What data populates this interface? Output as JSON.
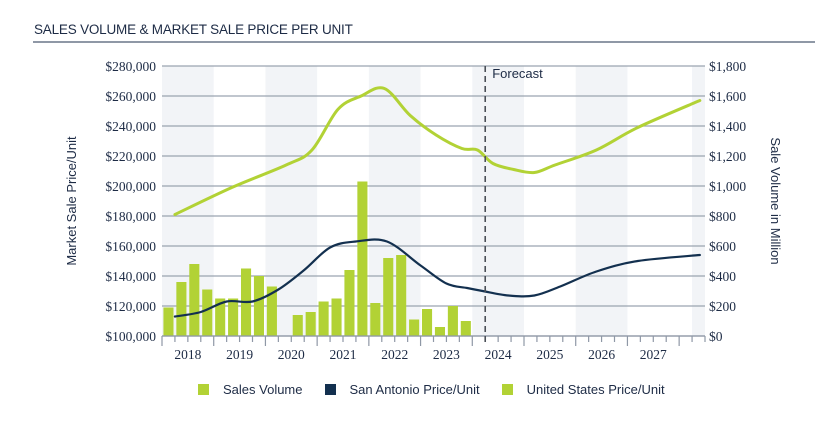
{
  "chart_data": {
    "type": "bar+line",
    "title": "SALES VOLUME & MARKET SALE PRICE PER UNIT",
    "ylabel_left": "Market Sale Price/Unit",
    "ylabel_right": "Sale Volume in Million",
    "ylim_left": [
      100000,
      280000
    ],
    "ylim_right": [
      0,
      1800
    ],
    "yticks_left": [
      "$100,000",
      "$120,000",
      "$140,000",
      "$160,000",
      "$180,000",
      "$200,000",
      "$220,000",
      "$240,000",
      "$260,000",
      "$280,000"
    ],
    "yticks_right": [
      "$0",
      "$200",
      "$400",
      "$600",
      "$800",
      "$1,000",
      "$1,200",
      "$1,400",
      "$1,600",
      "$1,800"
    ],
    "x_labels": [
      "2018",
      "2019",
      "2020",
      "2021",
      "2022",
      "2023",
      "2024",
      "2025",
      "2026",
      "2027"
    ],
    "x_range": [
      2017.5,
      2028.0
    ],
    "forecast_label": "Forecast",
    "forecast_x": 2023.75,
    "grid": true,
    "legend_position": "bottom",
    "series": [
      {
        "name": "Sales Volume",
        "type": "bar",
        "axis": "right",
        "color": "#b2d235",
        "x": [
          2017.625,
          2017.875,
          2018.125,
          2018.375,
          2018.625,
          2018.875,
          2019.125,
          2019.375,
          2019.625,
          2020.125,
          2020.375,
          2020.625,
          2020.875,
          2021.125,
          2021.375,
          2021.625,
          2021.875,
          2022.125,
          2022.375,
          2022.625,
          2022.875,
          2023.125,
          2023.375,
          2023.625
        ],
        "values": [
          190,
          360,
          480,
          310,
          250,
          250,
          450,
          400,
          330,
          140,
          160,
          230,
          250,
          440,
          1030,
          220,
          520,
          540,
          110,
          180,
          60,
          200,
          100,
          0
        ]
      },
      {
        "name": "San Antonio Price/Unit",
        "type": "line",
        "axis": "left",
        "color": "#13304f",
        "x": [
          2017.75,
          2018.25,
          2018.75,
          2019.25,
          2019.75,
          2020.25,
          2020.75,
          2021.25,
          2021.85,
          2022.5,
          2023.0,
          2023.4,
          2023.7,
          2024.2,
          2024.7,
          2025.2,
          2025.9,
          2026.7,
          2027.9
        ],
        "values": [
          113000,
          116000,
          123000,
          123000,
          131000,
          144000,
          159000,
          163000,
          163000,
          147000,
          135000,
          132000,
          130000,
          127000,
          127000,
          133000,
          143000,
          150000,
          154000
        ]
      },
      {
        "name": "United States Price/Unit",
        "type": "line",
        "axis": "left",
        "color": "#b2d235",
        "x": [
          2017.75,
          2018.85,
          2019.9,
          2020.4,
          2020.9,
          2021.35,
          2021.8,
          2022.3,
          2022.8,
          2023.3,
          2023.6,
          2023.9,
          2024.3,
          2024.7,
          2025.1,
          2025.9,
          2026.7,
          2027.9
        ],
        "values": [
          181000,
          199000,
          214000,
          224000,
          251000,
          260000,
          265000,
          247000,
          234000,
          225000,
          224000,
          215000,
          211000,
          209000,
          214000,
          224000,
          239000,
          257000
        ]
      }
    ]
  },
  "legend": [
    {
      "label": "Sales Volume",
      "color": "#b2d235"
    },
    {
      "label": "San Antonio Price/Unit",
      "color": "#13304f"
    },
    {
      "label": "United States Price/Unit",
      "color": "#b2d235"
    }
  ]
}
